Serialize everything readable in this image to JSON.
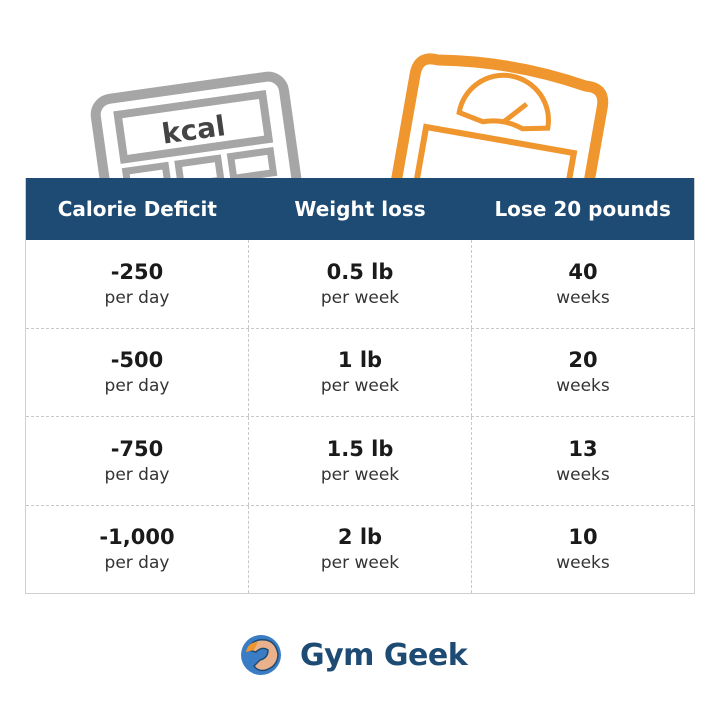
{
  "illustration": {
    "calculator_label": "kcal"
  },
  "table": {
    "headers": [
      "Calorie Deficit",
      "Weight loss",
      "Lose 20 pounds"
    ],
    "rows": [
      [
        {
          "main": "-250",
          "sub": "per day"
        },
        {
          "main": "0.5 lb",
          "sub": "per week"
        },
        {
          "main": "40",
          "sub": "weeks"
        }
      ],
      [
        {
          "main": "-500",
          "sub": "per day"
        },
        {
          "main": "1 lb",
          "sub": "per week"
        },
        {
          "main": "20",
          "sub": "weeks"
        }
      ],
      [
        {
          "main": "-750",
          "sub": "per day"
        },
        {
          "main": "1.5 lb",
          "sub": "per week"
        },
        {
          "main": "13",
          "sub": "weeks"
        }
      ],
      [
        {
          "main": "-1,000",
          "sub": "per day"
        },
        {
          "main": "2 lb",
          "sub": "per week"
        },
        {
          "main": "10",
          "sub": "weeks"
        }
      ]
    ]
  },
  "brand": {
    "name": "Gym Geek"
  },
  "colors": {
    "header": "#1d4b73",
    "calculator": "#a6a6a6",
    "scale": "#f0962e"
  }
}
